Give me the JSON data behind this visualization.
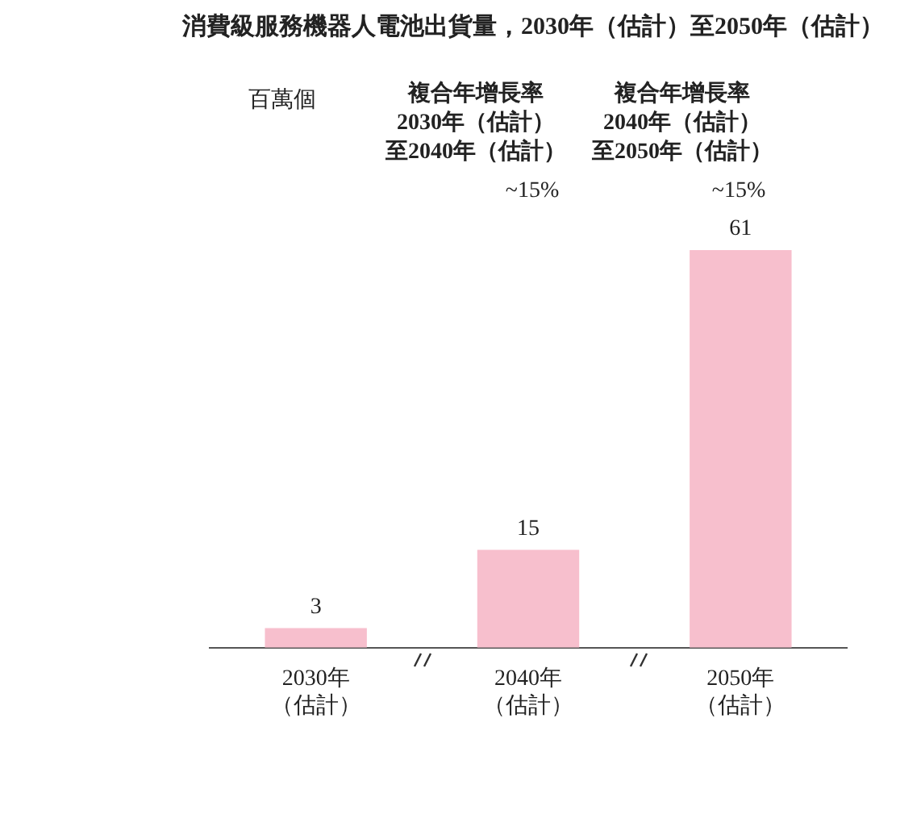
{
  "chart_data": {
    "type": "bar",
    "title": "消費級服務機器人電池出貨量，2030年（估計）至2050年（估計）",
    "categories": [
      "2030年（估計）",
      "2040年（估計）",
      "2050年（估計）"
    ],
    "values": [
      3,
      15,
      61
    ],
    "color": "#f7bfcd",
    "data_labels": true,
    "annotations": [
      "百萬個",
      "複合年增長率2030年（估計）至2040年（估計）",
      "~15%",
      "複合年增長率2040年（估計）至2050年（估計）",
      "~15%"
    ]
  }
}
